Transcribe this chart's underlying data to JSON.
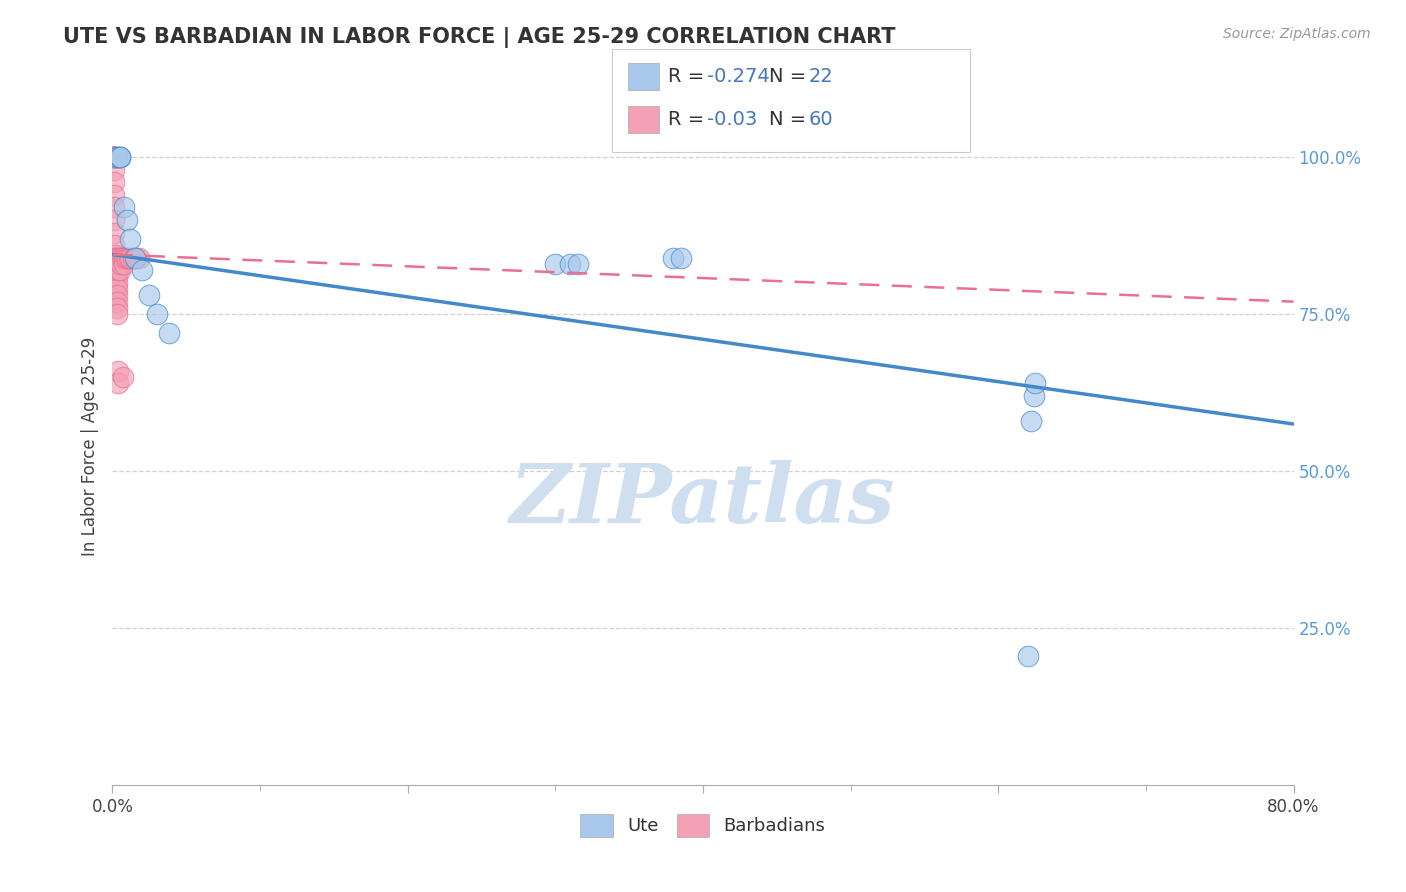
{
  "title": "UTE VS BARBADIAN IN LABOR FORCE | AGE 25-29 CORRELATION CHART",
  "source_text": "Source: ZipAtlas.com",
  "ylabel": "In Labor Force | Age 25-29",
  "xlim": [
    0.0,
    0.8
  ],
  "ylim": [
    0.0,
    1.08
  ],
  "xtick_labels": [
    "0.0%",
    "",
    "",
    "",
    "80.0%"
  ],
  "xtick_vals": [
    0.0,
    0.2,
    0.4,
    0.6,
    0.8
  ],
  "ytick_labels": [
    "25.0%",
    "50.0%",
    "75.0%",
    "100.0%"
  ],
  "ytick_vals": [
    0.25,
    0.5,
    0.75,
    1.0
  ],
  "ute_color": "#A8C8EC",
  "barbadian_color": "#F4A0B5",
  "trendline_ute_color": "#4488CC",
  "trendline_barbadian_color": "#E87090",
  "ute_R": -0.274,
  "ute_N": 22,
  "barbadian_R": -0.03,
  "barbadian_N": 60,
  "legend_text_color": "#333333",
  "legend_RN_color": "#4477BB",
  "watermark": "ZIPatlas",
  "watermark_color": "#D0DFF0",
  "ute_trendline_x0": 0.0,
  "ute_trendline_y0": 0.845,
  "ute_trendline_x1": 0.8,
  "ute_trendline_y1": 0.575,
  "barb_trendline_x0": 0.0,
  "barb_trendline_y0": 0.845,
  "barb_trendline_x1": 0.8,
  "barb_trendline_y1": 0.77,
  "ute_x": [
    0.003,
    0.003,
    0.005,
    0.005,
    0.005,
    0.008,
    0.01,
    0.012,
    0.015,
    0.02,
    0.025,
    0.03,
    0.038,
    0.3,
    0.31,
    0.315,
    0.38,
    0.385,
    0.62,
    0.622,
    0.624,
    0.625
  ],
  "ute_y": [
    1.0,
    1.0,
    1.0,
    1.0,
    1.0,
    0.92,
    0.9,
    0.87,
    0.84,
    0.82,
    0.78,
    0.75,
    0.72,
    0.83,
    0.83,
    0.83,
    0.84,
    0.84,
    0.205,
    0.58,
    0.62,
    0.64
  ],
  "barbadian_x": [
    0.001,
    0.001,
    0.001,
    0.001,
    0.001,
    0.001,
    0.001,
    0.001,
    0.001,
    0.001,
    0.001,
    0.001,
    0.001,
    0.001,
    0.001,
    0.001,
    0.001,
    0.001,
    0.001,
    0.001,
    0.002,
    0.002,
    0.002,
    0.002,
    0.002,
    0.002,
    0.002,
    0.002,
    0.002,
    0.003,
    0.003,
    0.003,
    0.003,
    0.003,
    0.003,
    0.003,
    0.003,
    0.003,
    0.003,
    0.004,
    0.004,
    0.004,
    0.004,
    0.004,
    0.005,
    0.005,
    0.005,
    0.006,
    0.006,
    0.007,
    0.007,
    0.008,
    0.008,
    0.009,
    0.01,
    0.011,
    0.012,
    0.014,
    0.016,
    0.018
  ],
  "barbadian_y": [
    1.0,
    1.0,
    1.0,
    1.0,
    1.0,
    1.0,
    1.0,
    1.0,
    1.0,
    1.0,
    1.0,
    0.98,
    0.96,
    0.94,
    0.92,
    0.9,
    0.88,
    0.86,
    0.84,
    0.82,
    0.845,
    0.84,
    0.83,
    0.82,
    0.81,
    0.8,
    0.79,
    0.78,
    0.77,
    0.84,
    0.83,
    0.82,
    0.81,
    0.8,
    0.79,
    0.78,
    0.77,
    0.76,
    0.75,
    0.84,
    0.83,
    0.82,
    0.66,
    0.64,
    0.84,
    0.83,
    0.82,
    0.84,
    0.83,
    0.84,
    0.65,
    0.84,
    0.83,
    0.84,
    0.84,
    0.84,
    0.84,
    0.84,
    0.84,
    0.84
  ]
}
